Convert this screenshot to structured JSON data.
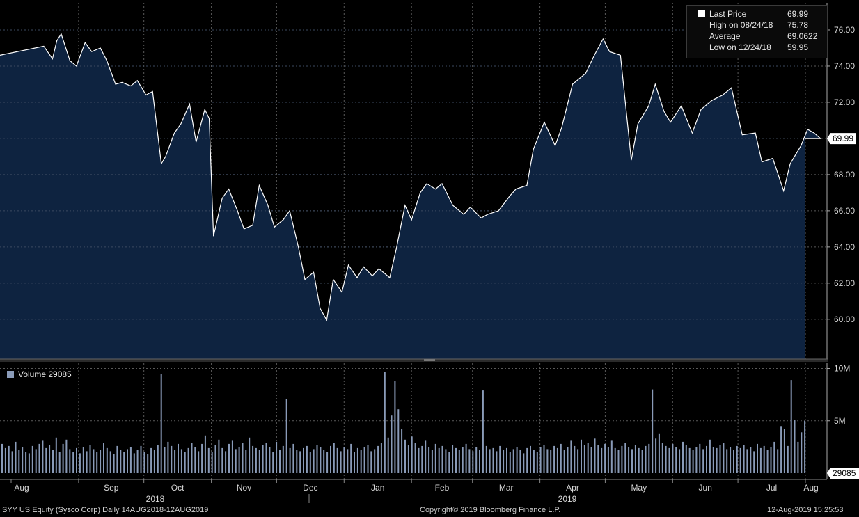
{
  "chart_data": [
    {
      "type": "area",
      "title": "",
      "ylim": [
        57.8,
        77.5
      ],
      "yticks": [
        "60.00",
        "62.00",
        "64.00",
        "66.00",
        "68.00",
        "70.00",
        "72.00",
        "74.00",
        "76.00"
      ],
      "last_price_tag": "69.99",
      "x_month_labels": [
        "Aug",
        "Sep",
        "Oct",
        "Nov",
        "Dec",
        "Jan",
        "Feb",
        "Mar",
        "Apr",
        "May",
        "Jun",
        "Jul",
        "Aug"
      ],
      "x_year_labels": [
        "2018",
        "2019"
      ],
      "series": [
        {
          "name": "Last Price",
          "x": [
            "2018-08-14",
            "2018-08-16",
            "2018-08-20",
            "2018-08-22",
            "2018-08-24",
            "2018-08-28",
            "2018-08-31",
            "2018-09-04",
            "2018-09-07",
            "2018-09-11",
            "2018-09-14",
            "2018-09-18",
            "2018-09-21",
            "2018-09-25",
            "2018-09-28",
            "2018-10-02",
            "2018-10-05",
            "2018-10-09",
            "2018-10-11",
            "2018-10-15",
            "2018-10-18",
            "2018-10-22",
            "2018-10-25",
            "2018-10-29",
            "2018-10-31",
            "2018-11-02",
            "2018-11-06",
            "2018-11-09",
            "2018-11-13",
            "2018-11-16",
            "2018-11-20",
            "2018-11-23",
            "2018-11-27",
            "2018-11-30",
            "2018-12-04",
            "2018-12-07",
            "2018-12-11",
            "2018-12-14",
            "2018-12-18",
            "2018-12-21",
            "2018-12-24",
            "2018-12-27",
            "2018-12-31",
            "2019-01-03",
            "2019-01-07",
            "2019-01-10",
            "2019-01-14",
            "2019-01-17",
            "2019-01-22",
            "2019-01-25",
            "2019-01-29",
            "2019-02-01",
            "2019-02-05",
            "2019-02-08",
            "2019-02-12",
            "2019-02-15",
            "2019-02-20",
            "2019-02-25",
            "2019-02-28",
            "2019-03-05",
            "2019-03-08",
            "2019-03-13",
            "2019-03-18",
            "2019-03-21",
            "2019-03-26",
            "2019-03-29",
            "2019-04-03",
            "2019-04-08",
            "2019-04-11",
            "2019-04-16",
            "2019-04-22",
            "2019-04-26",
            "2019-04-30",
            "2019-05-03",
            "2019-05-08",
            "2019-05-13",
            "2019-05-16",
            "2019-05-21",
            "2019-05-24",
            "2019-05-28",
            "2019-05-31",
            "2019-06-05",
            "2019-06-10",
            "2019-06-14",
            "2019-06-19",
            "2019-06-24",
            "2019-06-28",
            "2019-07-03",
            "2019-07-09",
            "2019-07-12",
            "2019-07-17",
            "2019-07-22",
            "2019-07-25",
            "2019-07-30",
            "2019-08-02",
            "2019-08-05",
            "2019-08-08",
            "2019-08-12"
          ],
          "values": [
            74.6,
            75.1,
            74.4,
            75.4,
            75.78,
            74.3,
            74.0,
            75.3,
            74.8,
            75.0,
            74.3,
            73.0,
            73.1,
            72.9,
            73.2,
            72.4,
            72.6,
            68.6,
            69.0,
            70.3,
            70.8,
            71.9,
            69.8,
            71.6,
            71.1,
            64.6,
            66.7,
            67.2,
            66.0,
            65.0,
            65.2,
            67.4,
            66.3,
            65.1,
            65.5,
            66.0,
            64.0,
            62.2,
            62.6,
            60.6,
            59.95,
            62.2,
            61.5,
            63.0,
            62.3,
            62.9,
            62.4,
            62.8,
            62.3,
            63.9,
            66.3,
            65.5,
            67.0,
            67.5,
            67.2,
            67.5,
            66.3,
            65.8,
            66.2,
            65.6,
            65.8,
            66.0,
            66.8,
            67.2,
            67.4,
            69.4,
            70.9,
            69.6,
            70.6,
            73.0,
            73.6,
            74.6,
            75.5,
            74.8,
            74.6,
            68.8,
            70.8,
            71.8,
            73.0,
            71.5,
            70.9,
            71.8,
            70.3,
            71.6,
            72.1,
            72.4,
            72.8,
            70.2,
            70.3,
            68.7,
            68.9,
            67.1,
            68.6,
            69.6,
            70.5,
            70.3,
            69.99,
            69.99
          ]
        },
        {
          "name": "High on 08/24/18",
          "value": 75.78
        },
        {
          "name": "Average",
          "value": 69.0622
        },
        {
          "name": "Low on 12/24/18",
          "value": 59.95
        }
      ]
    },
    {
      "type": "bar",
      "series": [
        {
          "name": "Volume",
          "last": "29085"
        }
      ],
      "ylim": [
        0,
        10500000
      ],
      "yticks": [
        "5M",
        "10M"
      ],
      "last_volume_tag": "29085",
      "values": [
        2.8,
        2.4,
        2.6,
        2.1,
        3.0,
        2.2,
        2.5,
        2.0,
        1.9,
        2.6,
        2.3,
        2.8,
        3.1,
        2.4,
        2.7,
        2.2,
        3.4,
        2.0,
        2.8,
        3.2,
        2.3,
        2.0,
        2.4,
        1.9,
        2.5,
        2.1,
        2.7,
        2.3,
        2.0,
        2.2,
        2.9,
        2.4,
        2.1,
        1.8,
        2.6,
        2.2,
        2.0,
        2.3,
        2.5,
        1.9,
        2.2,
        2.6,
        2.0,
        1.8,
        2.4,
        2.2,
        2.7,
        9.5,
        2.5,
        3.0,
        2.6,
        2.2,
        2.8,
        2.3,
        2.0,
        2.4,
        2.9,
        2.5,
        2.1,
        2.8,
        3.6,
        2.4,
        2.0,
        2.7,
        3.2,
        2.4,
        2.1,
        2.8,
        3.1,
        2.3,
        2.5,
        2.9,
        2.2,
        3.4,
        2.6,
        2.4,
        2.2,
        2.7,
        2.9,
        2.5,
        2.0,
        3.0,
        2.2,
        2.6,
        7.1,
        2.4,
        2.8,
        2.2,
        2.1,
        2.4,
        2.6,
        2.0,
        2.3,
        2.7,
        2.5,
        2.2,
        2.0,
        2.6,
        2.9,
        2.4,
        2.1,
        2.5,
        2.3,
        2.8,
        2.0,
        2.4,
        2.2,
        2.5,
        2.7,
        2.1,
        2.3,
        2.6,
        2.9,
        9.7,
        3.4,
        5.5,
        8.8,
        6.1,
        4.2,
        3.2,
        2.7,
        3.5,
        2.9,
        2.4,
        2.6,
        3.1,
        2.5,
        2.2,
        2.8,
        2.4,
        2.6,
        2.3,
        2.0,
        2.7,
        2.4,
        2.2,
        2.5,
        2.8,
        2.3,
        2.1,
        2.5,
        2.2,
        7.9,
        2.6,
        2.3,
        2.4,
        2.1,
        2.6,
        2.2,
        2.4,
        2.0,
        2.3,
        2.5,
        2.2,
        1.9,
        2.4,
        2.6,
        2.2,
        2.0,
        2.5,
        2.7,
        2.3,
        2.2,
        2.6,
        2.4,
        2.8,
        2.2,
        2.5,
        3.1,
        2.6,
        2.3,
        3.2,
        2.7,
        2.9,
        2.5,
        3.3,
        2.7,
        2.4,
        2.8,
        2.5,
        3.1,
        2.4,
        2.2,
        2.6,
        2.9,
        2.5,
        2.3,
        2.7,
        2.4,
        2.2,
        2.6,
        2.8,
        8.0,
        3.3,
        3.8,
        2.9,
        2.6,
        2.4,
        2.8,
        2.5,
        2.3,
        3.0,
        2.7,
        2.4,
        2.2,
        2.5,
        2.8,
        2.3,
        2.6,
        3.2,
        2.5,
        2.4,
        2.7,
        2.9,
        2.3,
        2.5,
        2.2,
        2.6,
        2.4,
        2.7,
        2.3,
        2.5,
        2.1,
        2.8,
        2.4,
        2.6,
        2.2,
        2.5,
        3.0,
        2.3,
        4.5,
        4.2,
        2.6,
        8.9,
        5.1,
        3.0,
        3.9,
        5.0
      ]
    }
  ],
  "legend": {
    "rows": [
      {
        "label": "Last Price",
        "value": "69.99"
      },
      {
        "label": "High on 08/24/18",
        "value": "75.78"
      },
      {
        "label": "Average",
        "value": "69.0622"
      },
      {
        "label": "Low on 12/24/18",
        "value": "59.95"
      }
    ],
    "volume_label": "Volume 29085"
  },
  "footer": {
    "left": "SYY US Equity (Sysco Corp)  Daily 14AUG2018-12AUG2019",
    "center": "Copyright© 2019 Bloomberg Finance L.P.",
    "right": "12-Aug-2019 15:25:53"
  },
  "colors": {
    "area_fill": "#0e2340",
    "line": "#ffffff",
    "volume": "#8a9bb8",
    "tag_bg": "#ffffff"
  }
}
